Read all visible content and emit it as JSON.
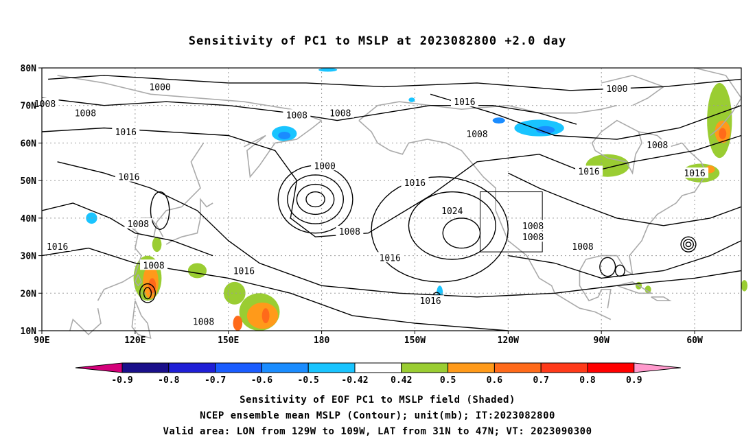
{
  "title": "Sensitivity of PC1 to MSLP at 2023082800 +2.0 day",
  "lat_labels": [
    "80N",
    "70N",
    "60N",
    "50N",
    "40N",
    "30N",
    "20N",
    "10N"
  ],
  "lon_labels": [
    "90E",
    "120E",
    "150E",
    "180",
    "150W",
    "120W",
    "90W",
    "60W"
  ],
  "contour_labels": [
    {
      "text": "1000",
      "lon": 128,
      "lat": 75
    },
    {
      "text": "1008",
      "lon": 104,
      "lat": 68
    },
    {
      "text": "1008",
      "lon": 91,
      "lat": 70.5
    },
    {
      "text": "1016",
      "lon": 117,
      "lat": 63
    },
    {
      "text": "1016",
      "lon": 118,
      "lat": 51
    },
    {
      "text": "1008",
      "lon": 121,
      "lat": 38.5
    },
    {
      "text": "1016",
      "lon": 95,
      "lat": 32.5
    },
    {
      "text": "1008",
      "lon": 126,
      "lat": 27.5
    },
    {
      "text": "1016",
      "lon": 155,
      "lat": 26
    },
    {
      "text": "1008",
      "lon": 142,
      "lat": 12.5
    },
    {
      "text": "1008",
      "lon": 172,
      "lat": 67.5
    },
    {
      "text": "1008",
      "lon": -174,
      "lat": 68
    },
    {
      "text": "1000",
      "lon": -179,
      "lat": 54
    },
    {
      "text": "1008",
      "lon": -171,
      "lat": 36.5
    },
    {
      "text": "1016",
      "lon": -158,
      "lat": 29.5
    },
    {
      "text": "1016",
      "lon": -150,
      "lat": 49.5
    },
    {
      "text": "1024",
      "lon": -138,
      "lat": 42
    },
    {
      "text": "1016",
      "lon": -145,
      "lat": 18
    },
    {
      "text": "1016",
      "lon": -134,
      "lat": 71
    },
    {
      "text": "1008",
      "lon": -130,
      "lat": 62.5
    },
    {
      "text": "1008",
      "lon": -112,
      "lat": 38
    },
    {
      "text": "1008",
      "lon": -112,
      "lat": 35
    },
    {
      "text": "1008",
      "lon": -96,
      "lat": 32.5
    },
    {
      "text": "1000",
      "lon": -85,
      "lat": 74.5
    },
    {
      "text": "1008",
      "lon": -72,
      "lat": 59.5
    },
    {
      "text": "1016",
      "lon": -94,
      "lat": 52.5
    },
    {
      "text": "1016",
      "lon": -60,
      "lat": 52
    }
  ],
  "colorbar": {
    "labels": [
      "-0.9",
      "-0.8",
      "-0.7",
      "-0.6",
      "-0.5",
      "-0.42",
      "0.42",
      "0.5",
      "0.6",
      "0.7",
      "0.8",
      "0.9"
    ],
    "colors": [
      "#1a0f8a",
      "#1f1fd6",
      "#1a5cff",
      "#1a8cff",
      "#19c4ff",
      "#ffffff",
      "#9acd32",
      "#ff9a1a",
      "#ff6a1a",
      "#ff3a1a",
      "#ff0000"
    ],
    "low_end_color": "#d4007a",
    "high_end_color": "#ff99cc"
  },
  "captions": [
    "Sensitivity of EOF PC1 to MSLP field (Shaded)",
    "NCEP ensemble mean MSLP (Contour); unit(mb); IT:2023082800",
    "Valid area: LON from 129W to 109W, LAT from 31N to 47N; VT: 2023090300"
  ],
  "valid_area": {
    "lon_min": -129,
    "lon_max": -109,
    "lat_min": 31,
    "lat_max": 47
  },
  "colors": {
    "land": "#aaaaaa",
    "grid": "#999999",
    "contour": "#000000"
  }
}
